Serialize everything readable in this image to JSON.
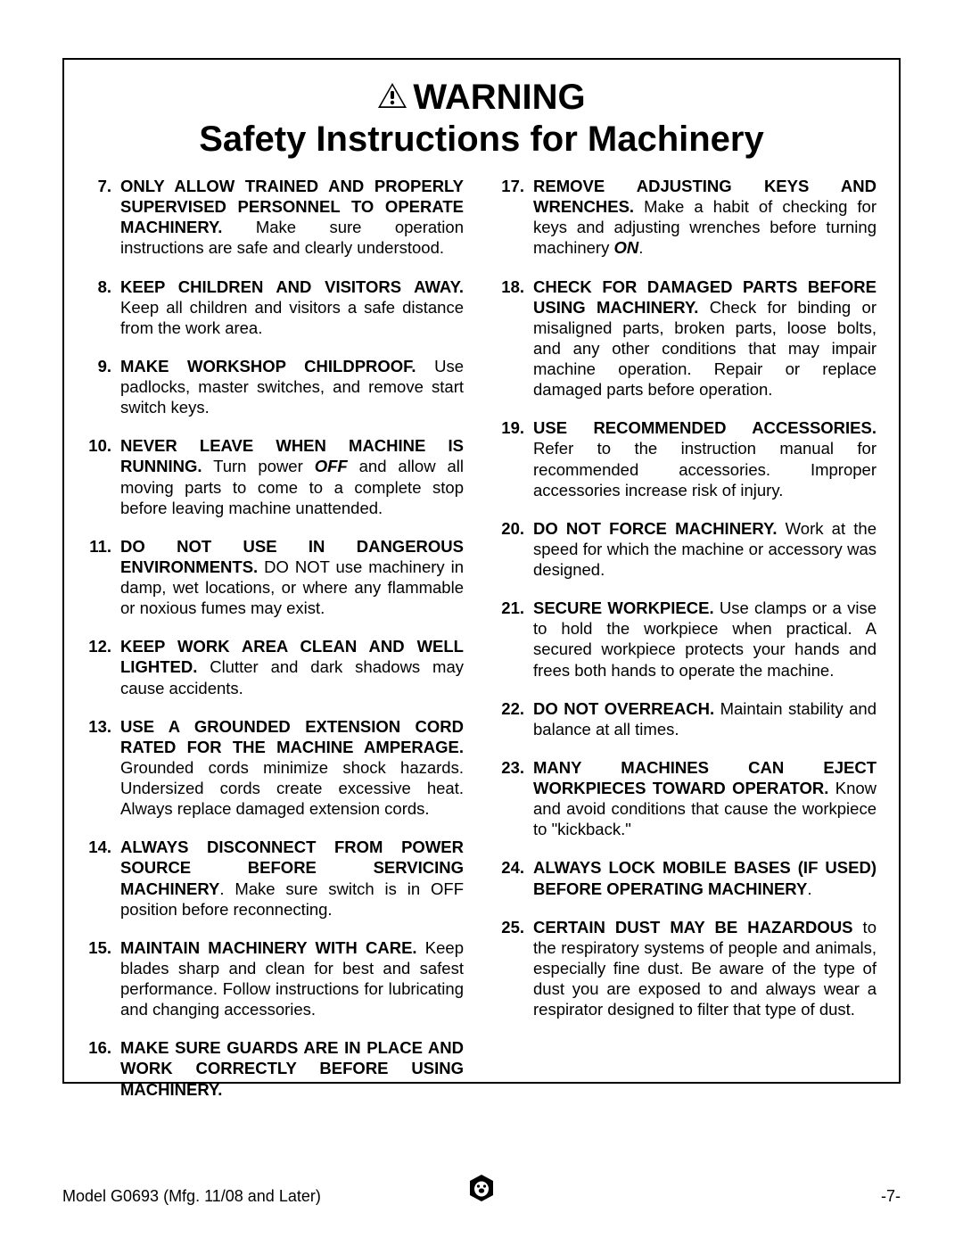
{
  "header": {
    "warning": "WARNING",
    "subtitle": "Safety Instructions for Machinery"
  },
  "items_left": [
    {
      "n": "7.",
      "html": "<b>ONLY ALLOW TRAINED AND PROPERLY SUPERVISED PERSONNEL TO OPERATE MACHINERY.</b> Make sure operation instructions are safe and clearly understood."
    },
    {
      "n": "8.",
      "html": "<b>KEEP CHILDREN AND VISITORS AWAY.</b> Keep all children and visitors a safe distance from the work area."
    },
    {
      "n": "9.",
      "html": "<b>MAKE WORKSHOP CHILDPROOF.</b> Use padlocks, master switches, and remove start switch keys."
    },
    {
      "n": "10.",
      "html": "<b>NEVER LEAVE WHEN MACHINE IS RUNNING.</b> Turn power <i class='bold'>OFF</i> and allow all moving parts to come to a complete stop before leaving machine unattended."
    },
    {
      "n": "11.",
      "html": "<b>DO NOT USE IN DANGEROUS ENVIRONMENTS.</b> DO NOT use machinery in damp, wet locations, or where any flammable or noxious fumes may exist."
    },
    {
      "n": "12.",
      "html": "<b>KEEP WORK AREA CLEAN AND WELL LIGHTED.</b> Clutter and dark shadows may cause accidents."
    },
    {
      "n": "13.",
      "html": "<b>USE A GROUNDED EXTENSION CORD RATED FOR THE MACHINE AMPERAGE.</b> Grounded cords minimize shock hazards. Undersized cords create excessive heat. Always replace damaged extension cords."
    },
    {
      "n": "14.",
      "html": "<b>ALWAYS DISCONNECT FROM POWER SOURCE BEFORE SERVICING MACHINERY</b>. Make sure switch is in OFF position before reconnecting."
    },
    {
      "n": "15.",
      "html": "<b>MAINTAIN MACHINERY WITH CARE.</b> Keep blades sharp and clean for best and safest performance. Follow instructions for lubricating and changing accessories."
    },
    {
      "n": "16.",
      "html": "<b>MAKE SURE GUARDS ARE IN PLACE AND WORK CORRECTLY BEFORE USING MACHINERY.</b>"
    }
  ],
  "items_right": [
    {
      "n": "17.",
      "html": "<b>REMOVE ADJUSTING KEYS AND WRENCHES.</b> Make a habit of checking for keys and adjusting wrenches before turning machinery <i class='bold'>ON</i>."
    },
    {
      "n": "18.",
      "html": "<b>CHECK FOR DAMAGED PARTS BEFORE USING MACHINERY.</b> Check for binding or misaligned parts, broken parts, loose bolts, and any other conditions that may impair machine operation. Repair or replace damaged parts before operation."
    },
    {
      "n": "19.",
      "html": "<b>USE RECOMMENDED ACCESSORIES.</b> Refer to the instruction manual for recommended accessories. Improper accessories increase risk of injury."
    },
    {
      "n": "20.",
      "html": "<b>DO NOT FORCE MACHINERY.</b> Work at the speed for which the machine or accessory was designed."
    },
    {
      "n": "21.",
      "html": "<b>SECURE WORKPIECE.</b> Use clamps or a vise to hold the workpiece when practical. A secured workpiece protects your hands and frees both hands to operate the machine."
    },
    {
      "n": "22.",
      "html": "<b>DO NOT OVERREACH.</b> Maintain stability and balance at all times."
    },
    {
      "n": "23.",
      "html": "<b>MANY MACHINES CAN EJECT WORKPIECES TOWARD OPERATOR.</b> Know and avoid conditions that cause the workpiece to \"kickback.\""
    },
    {
      "n": "24.",
      "html": "<b>ALWAYS LOCK MOBILE BASES (IF USED) BEFORE OPERATING MACHINERY</b>."
    },
    {
      "n": "25.",
      "html": "<b>CERTAIN DUST MAY BE HAZARDOUS</b> to the respiratory systems of people and animals, especially fine dust. Be aware of the type of dust you are exposed to and always wear a respirator designed to filter that type of dust."
    }
  ],
  "footer": {
    "left": "Model G0693 (Mfg. 11/08 and Later)",
    "right": "-7-"
  }
}
